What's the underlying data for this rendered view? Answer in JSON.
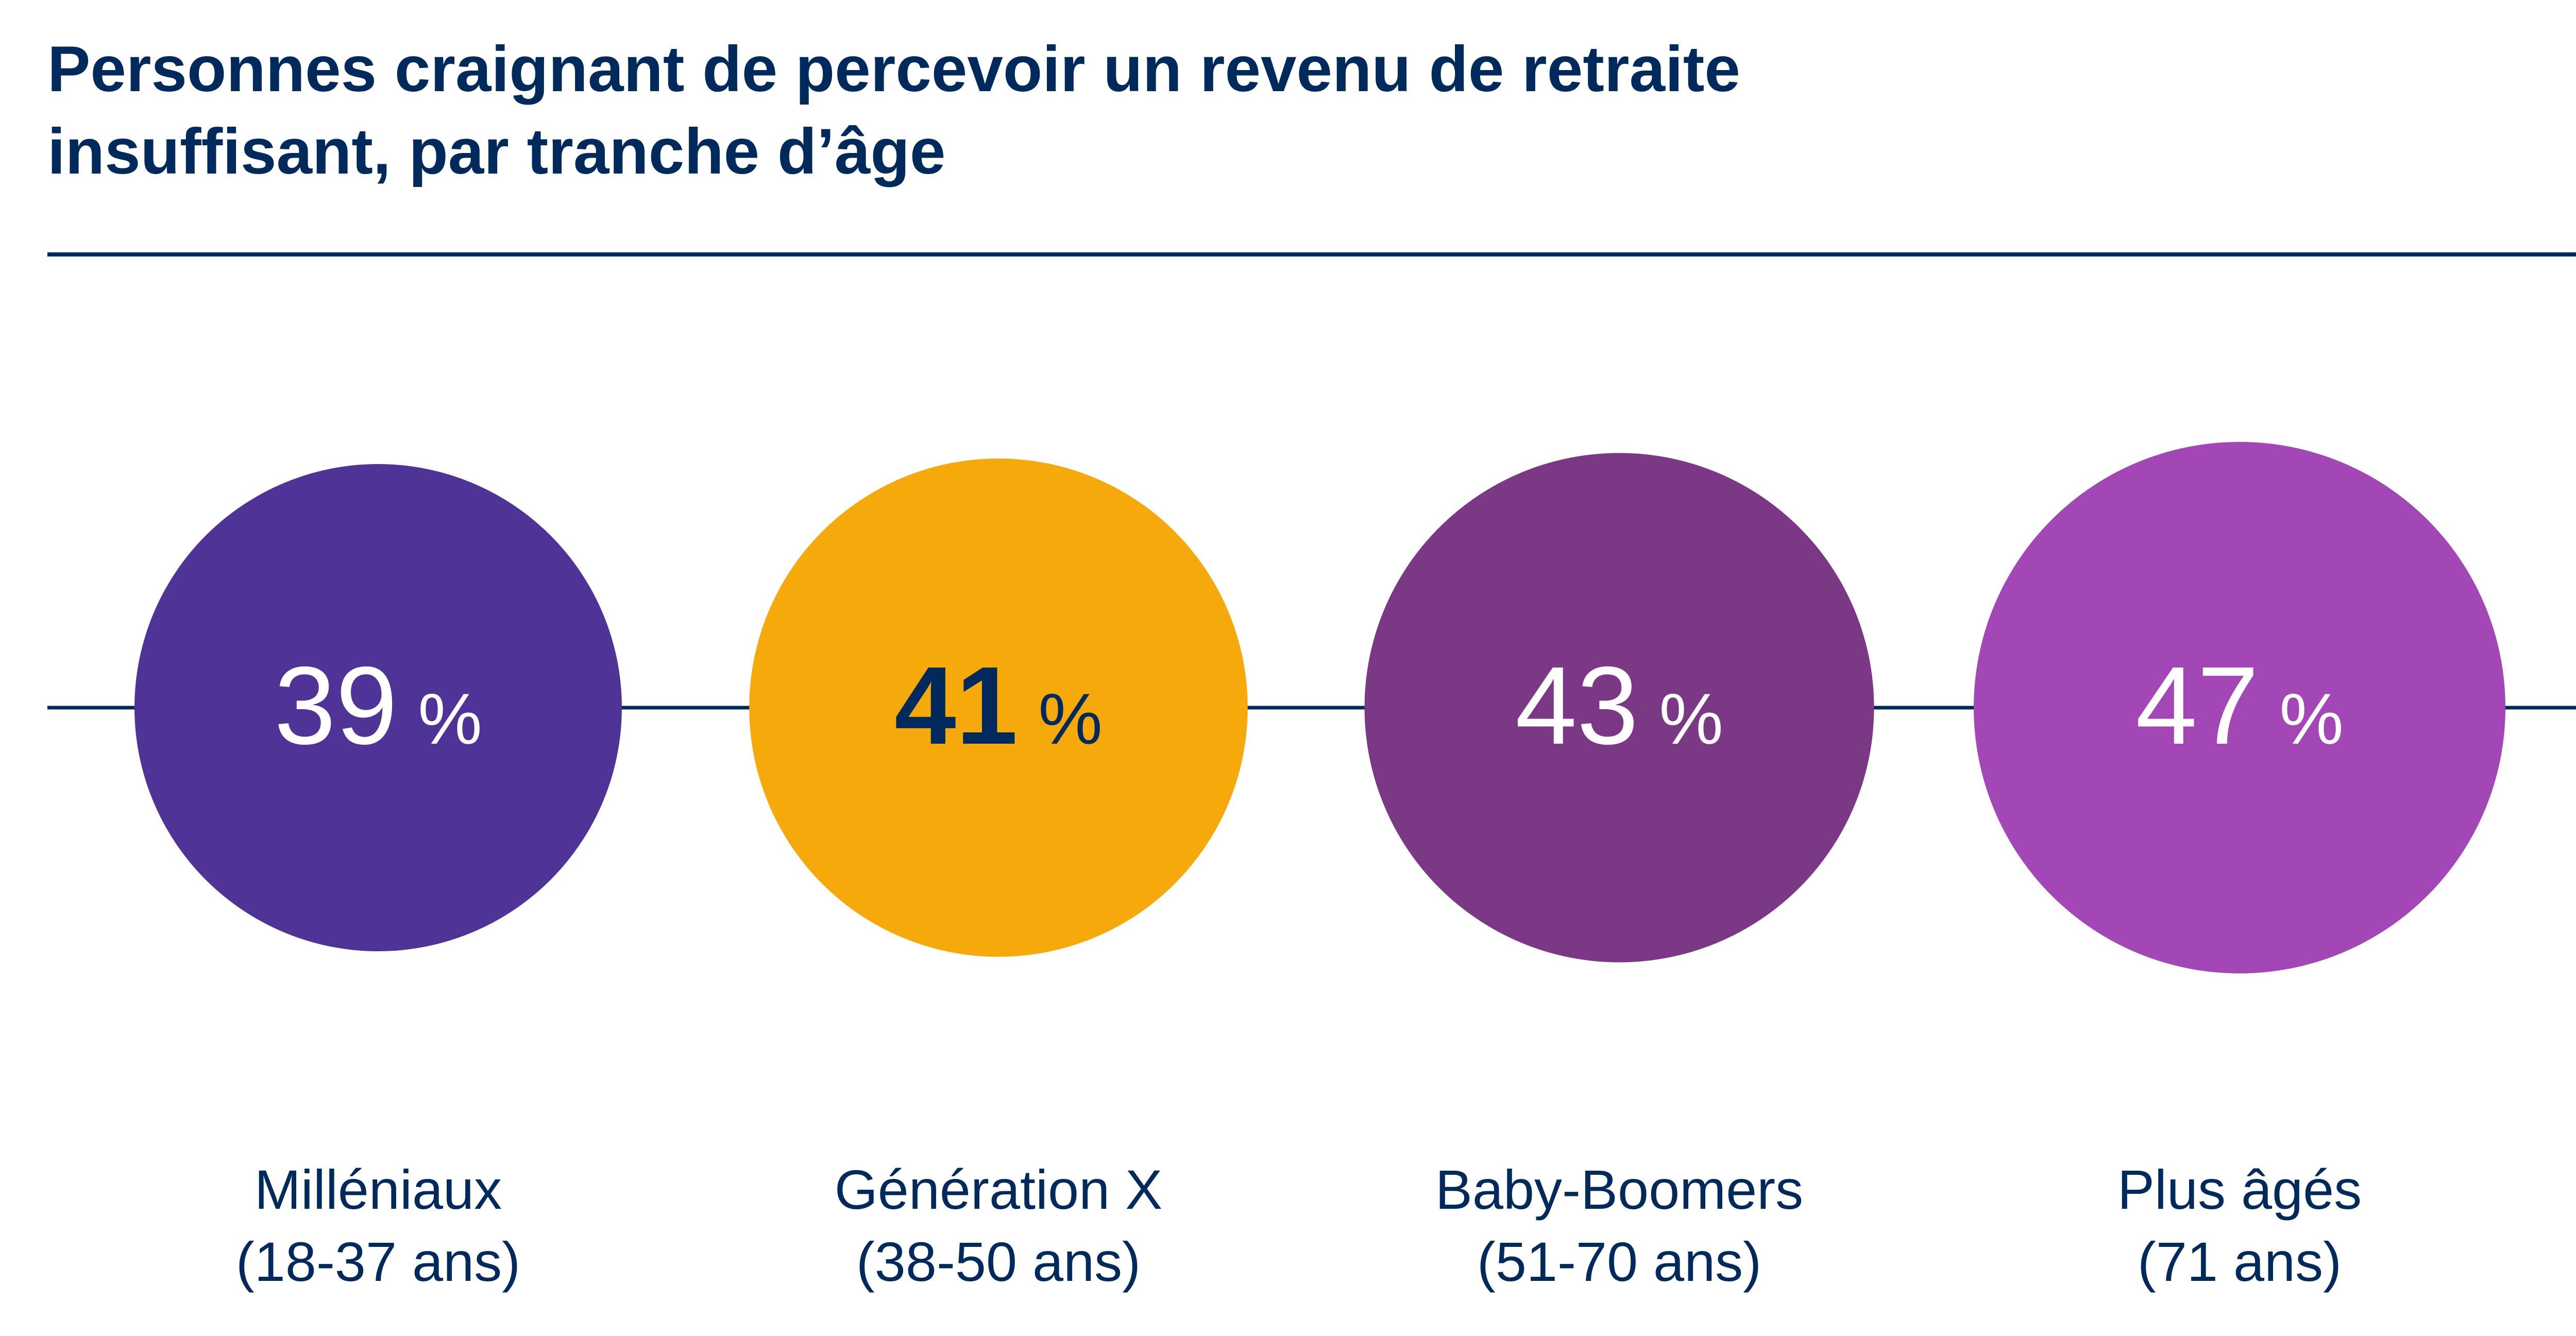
{
  "title": "Personnes craignant de percevoir un revenu de retraite insuffisant, par tranche d’âge",
  "chart_data": {
    "type": "bubble-row",
    "title": "Personnes craignant de percevoir un revenu de retraite insuffisant, par tranche d’âge",
    "unit": "%",
    "categories": [
      "Milléniaux (18-37 ans)",
      "Génération X (38-50 ans)",
      "Baby-Boomers (51-70 ans)",
      "Plus âgés (71 ans)"
    ],
    "values": [
      39,
      41,
      43,
      47
    ],
    "items": [
      {
        "label": "Milléniaux",
        "sublabel": "(18-37 ans)",
        "value": 39,
        "value_text": "39",
        "unit": "%",
        "color": "#4f3396",
        "text_color": "#ffffff"
      },
      {
        "label": "Génération X",
        "sublabel": "(38-50 ans)",
        "value": 41,
        "value_text": "41",
        "unit": "%",
        "color": "#f6a90a",
        "text_color": "#002a5c"
      },
      {
        "label": "Baby-Boomers",
        "sublabel": "(51-70 ans)",
        "value": 43,
        "value_text": "43",
        "unit": "%",
        "color": "#7b3885",
        "text_color": "#ffffff"
      },
      {
        "label": "Plus âgés",
        "sublabel": "(71 ans)",
        "value": 47,
        "value_text": "47",
        "unit": "%",
        "color": "#a347b7",
        "text_color": "#ffffff"
      }
    ],
    "line_color": "#002a5c",
    "grid": false,
    "legend": "none"
  }
}
